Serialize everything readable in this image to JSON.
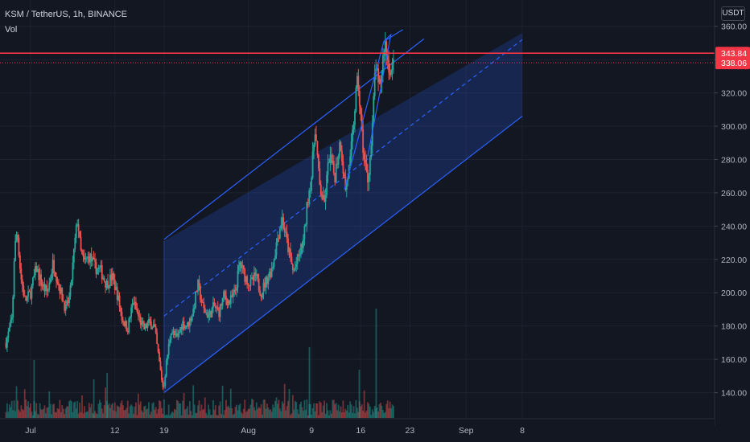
{
  "header": {
    "symbol_line": "KSM / TetherUS, 1h, BINANCE",
    "volume_label": "Vol",
    "currency_button": "USDT"
  },
  "colors": {
    "background": "#131722",
    "grid": "#1e2230",
    "up": "#26a69a",
    "down": "#ef5350",
    "channel": "#2962ff",
    "price_line": "#f23645"
  },
  "chart_data": {
    "type": "candlestick",
    "title": "KSM / TetherUS, 1h, BINANCE",
    "ylim": [
      120,
      370
    ],
    "y_ticks": [
      "140.00",
      "160.00",
      "180.00",
      "200.00",
      "220.00",
      "240.00",
      "260.00",
      "280.00",
      "300.00",
      "320.00",
      "340.00",
      "360.00"
    ],
    "x_tick_labels": [
      "Jul",
      "12",
      "19",
      "Aug",
      "9",
      "16",
      "23",
      "Sep",
      "8"
    ],
    "x_tick_days": [
      0,
      12,
      19,
      31,
      40,
      47,
      54,
      62,
      70
    ],
    "visible_data_days": [
      -3.5,
      56.5
    ],
    "price_labels": [
      {
        "value": 343.84,
        "text": "343.84",
        "style": "solid"
      },
      {
        "value": 338.06,
        "text": "338.06",
        "style": "dotted"
      }
    ],
    "close_path": [
      [
        -3.5,
        170
      ],
      [
        -2.6,
        185
      ],
      [
        -2.3,
        225
      ],
      [
        -1.9,
        238
      ],
      [
        -1.4,
        210
      ],
      [
        -0.8,
        195
      ],
      [
        0,
        200
      ],
      [
        0.8,
        215
      ],
      [
        1.6,
        205
      ],
      [
        2.4,
        200
      ],
      [
        3.2,
        218
      ],
      [
        4,
        205
      ],
      [
        5,
        190
      ],
      [
        5.6,
        198
      ],
      [
        6.3,
        230
      ],
      [
        6.7,
        245
      ],
      [
        7.1,
        225
      ],
      [
        7.6,
        218
      ],
      [
        8.4,
        222
      ],
      [
        9.2,
        215
      ],
      [
        10,
        213
      ],
      [
        10.8,
        205
      ],
      [
        11.6,
        210
      ],
      [
        12.4,
        198
      ],
      [
        13,
        185
      ],
      [
        13.8,
        178
      ],
      [
        14.6,
        195
      ],
      [
        15.4,
        185
      ],
      [
        16.1,
        178
      ],
      [
        16.9,
        182
      ],
      [
        17.6,
        180
      ],
      [
        18.2,
        162
      ],
      [
        18.6,
        150
      ],
      [
        18.9,
        142
      ],
      [
        19.4,
        160
      ],
      [
        20,
        178
      ],
      [
        20.8,
        172
      ],
      [
        21.6,
        182
      ],
      [
        22.3,
        180
      ],
      [
        23.1,
        188
      ],
      [
        23.8,
        205
      ],
      [
        24.6,
        190
      ],
      [
        25.4,
        186
      ],
      [
        26.1,
        192
      ],
      [
        26.8,
        188
      ],
      [
        27.5,
        198
      ],
      [
        28.3,
        194
      ],
      [
        29.1,
        200
      ],
      [
        29.8,
        218
      ],
      [
        30.5,
        210
      ],
      [
        31.3,
        205
      ],
      [
        32,
        210
      ],
      [
        32.8,
        200
      ],
      [
        33.6,
        208
      ],
      [
        34.4,
        215
      ],
      [
        35.1,
        232
      ],
      [
        35.8,
        245
      ],
      [
        36.6,
        228
      ],
      [
        37.4,
        212
      ],
      [
        38.2,
        222
      ],
      [
        38.9,
        232
      ],
      [
        39.5,
        258
      ],
      [
        40,
        270
      ],
      [
        40.5,
        300
      ],
      [
        41.1,
        265
      ],
      [
        41.8,
        252
      ],
      [
        42.5,
        282
      ],
      [
        43.3,
        270
      ],
      [
        44.1,
        292
      ],
      [
        44.8,
        262
      ],
      [
        45.5,
        278
      ],
      [
        46.3,
        318
      ],
      [
        46.6,
        328
      ],
      [
        47.1,
        298
      ],
      [
        47.5,
        280
      ],
      [
        48,
        268
      ],
      [
        48.6,
        292
      ],
      [
        49.1,
        340
      ],
      [
        49.5,
        322
      ],
      [
        49.9,
        328
      ],
      [
        50.4,
        352
      ],
      [
        50.9,
        338
      ],
      [
        51.4,
        332
      ],
      [
        51.8,
        340
      ]
    ],
    "volume_baseline": 520,
    "volume_spikes": [
      {
        "day": 10.9,
        "v": 14
      },
      {
        "day": 46.8,
        "v": 15
      },
      {
        "day": 49.2,
        "v": 34
      },
      {
        "day": 39.7,
        "v": 22
      },
      {
        "day": 0.5,
        "v": 18
      },
      {
        "day": 9.0,
        "v": 12
      }
    ],
    "channel": {
      "start_day": 19.0,
      "end_day": 70.0,
      "lower_start": 140,
      "lower_end": 306,
      "width": 90,
      "band_top_start": 231,
      "band_top_end": 356,
      "band_bottom_end": 306
    },
    "zigzag": [
      [
        44.7,
        262
      ],
      [
        50.3,
        351
      ],
      [
        51.3,
        355
      ],
      [
        48.0,
        282
      ]
    ]
  }
}
